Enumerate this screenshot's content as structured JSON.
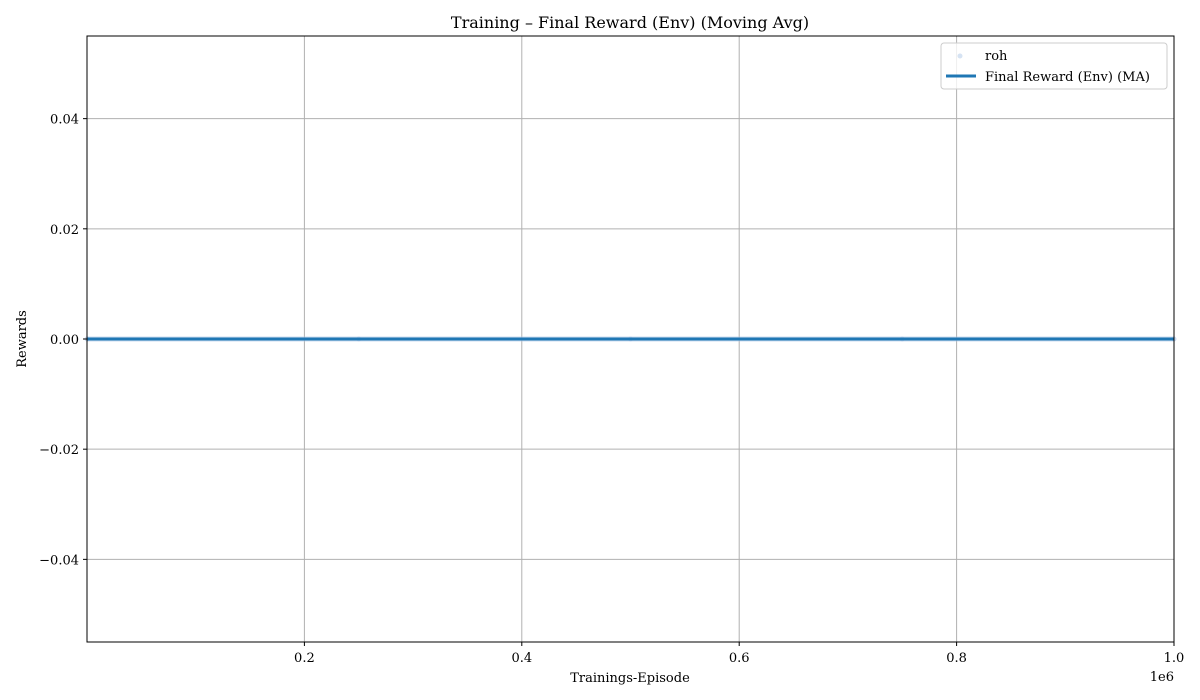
{
  "chart_data": {
    "type": "line",
    "title": "Training – Final Reward (Env) (Moving Avg)",
    "xlabel": "Trainings-Episode",
    "ylabel": "Rewards",
    "x_offset_label": "1e6",
    "xlim": [
      0,
      1.0
    ],
    "ylim": [
      -0.055,
      0.055
    ],
    "x_ticks": [
      0.2,
      0.4,
      0.6,
      0.8,
      1.0
    ],
    "x_tick_labels": [
      "0.2",
      "0.4",
      "0.6",
      "0.8",
      "1.0"
    ],
    "y_ticks": [
      0.04,
      0.02,
      0.0,
      -0.02,
      -0.04
    ],
    "y_tick_labels": [
      "0.04",
      "0.02",
      "0.00",
      "−0.02",
      "−0.04"
    ],
    "grid": true,
    "legend_position": "top-right",
    "series": [
      {
        "name": "roh",
        "style": "scatter",
        "color": "#aec7e8",
        "x": [
          0.0,
          0.25,
          0.5,
          0.75,
          1.0
        ],
        "y": [
          0,
          0,
          0,
          0,
          0
        ]
      },
      {
        "name": "Final Reward (Env) (MA)",
        "style": "line",
        "color": "#1f77b4",
        "x": [
          0.0,
          0.25,
          0.5,
          0.75,
          1.0
        ],
        "y": [
          0,
          0,
          0,
          0,
          0
        ]
      }
    ]
  }
}
